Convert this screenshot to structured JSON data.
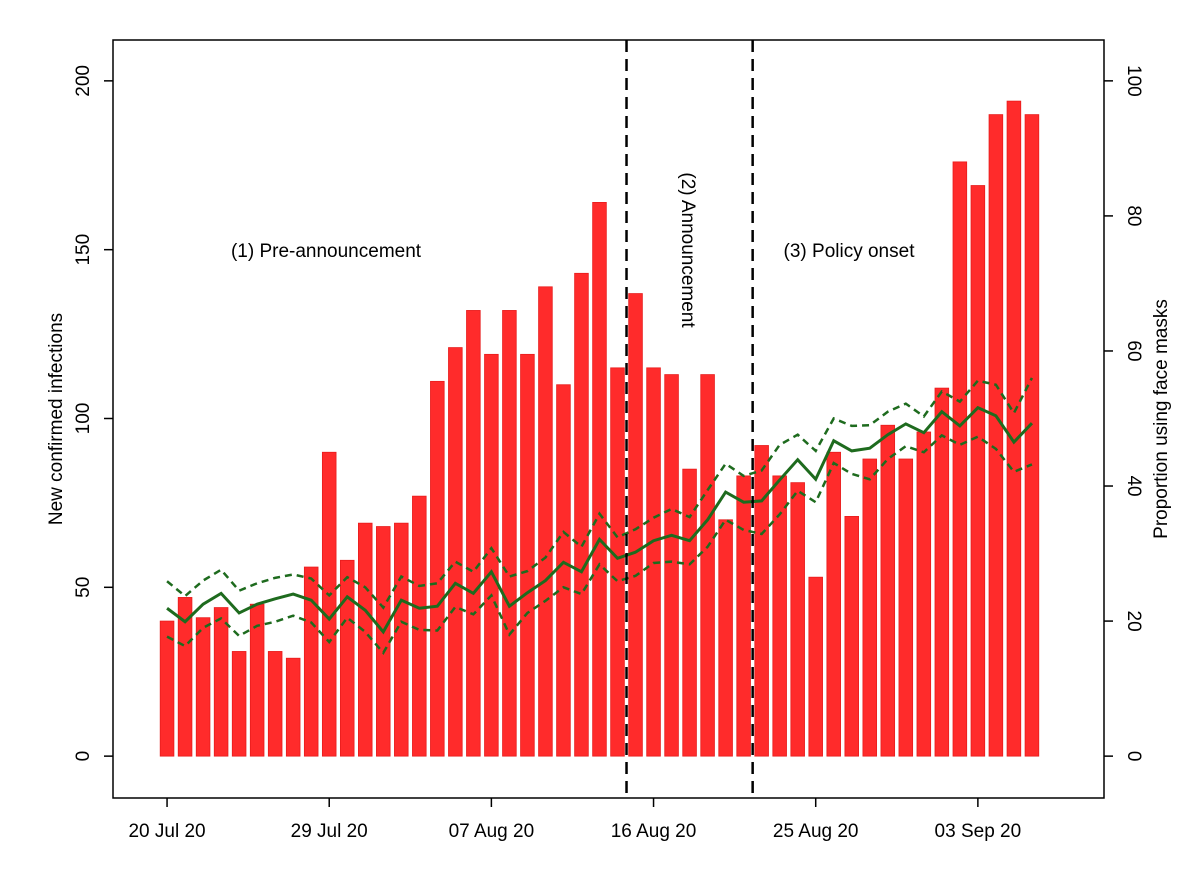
{
  "chart_data": {
    "type": "bar",
    "y_label": "New confirmed infections",
    "y2_label": "Proportion using face masks",
    "x": [
      "2020-07-20",
      "2020-07-21",
      "2020-07-22",
      "2020-07-23",
      "2020-07-24",
      "2020-07-25",
      "2020-07-26",
      "2020-07-27",
      "2020-07-28",
      "2020-07-29",
      "2020-07-30",
      "2020-07-31",
      "2020-08-01",
      "2020-08-02",
      "2020-08-03",
      "2020-08-04",
      "2020-08-05",
      "2020-08-06",
      "2020-08-07",
      "2020-08-08",
      "2020-08-09",
      "2020-08-10",
      "2020-08-11",
      "2020-08-12",
      "2020-08-13",
      "2020-08-14",
      "2020-08-15",
      "2020-08-16",
      "2020-08-17",
      "2020-08-18",
      "2020-08-19",
      "2020-08-20",
      "2020-08-21",
      "2020-08-22",
      "2020-08-23",
      "2020-08-24",
      "2020-08-25",
      "2020-08-26",
      "2020-08-27",
      "2020-08-28",
      "2020-08-29",
      "2020-08-30",
      "2020-08-31",
      "2020-09-01",
      "2020-09-02",
      "2020-09-03",
      "2020-09-04",
      "2020-09-05",
      "2020-09-06"
    ],
    "series": [
      {
        "type": "bar",
        "color": "#ff2b2b",
        "values": [
          40,
          47,
          41,
          44,
          31,
          45,
          31,
          29,
          56,
          90,
          58,
          69,
          68,
          69,
          77,
          111,
          121,
          132,
          119,
          132,
          119,
          139,
          110,
          143,
          164,
          115,
          137,
          115,
          113,
          85,
          113,
          70,
          83,
          92,
          83,
          81,
          53,
          90,
          71,
          88,
          98,
          88,
          96,
          109,
          176,
          169,
          190,
          194,
          190
        ]
      },
      {
        "type": "line",
        "axis": "y2",
        "color": "#1e6b1e",
        "dashed": false,
        "values": [
          21.9,
          19.9,
          22.5,
          24.1,
          21.2,
          22.5,
          23.3,
          24.0,
          23.1,
          20.3,
          23.6,
          21.6,
          18.4,
          23.1,
          21.9,
          22.2,
          25.6,
          24.1,
          27.3,
          22.2,
          24.2,
          26.0,
          28.7,
          27.3,
          32.1,
          29.3,
          30.2,
          31.9,
          32.7,
          31.9,
          35.0,
          39.1,
          37.6,
          37.8,
          40.9,
          43.9,
          41.0,
          46.7,
          45.2,
          45.6,
          47.6,
          49.2,
          47.9,
          51.0,
          48.9,
          51.6,
          50.4,
          46.5,
          49.3
        ]
      },
      {
        "type": "line",
        "axis": "y2",
        "color": "#1e6b1e",
        "dashed": true,
        "values": [
          25.9,
          23.7,
          26.0,
          27.6,
          24.5,
          25.6,
          26.4,
          26.9,
          26.3,
          23.8,
          26.5,
          25.0,
          22.0,
          26.6,
          25.2,
          25.6,
          28.8,
          27.3,
          30.8,
          26.6,
          27.4,
          29.4,
          33.2,
          31.0,
          35.9,
          32.4,
          33.6,
          35.3,
          36.6,
          35.4,
          39.4,
          43.3,
          41.5,
          42.3,
          46.1,
          47.6,
          45.2,
          50.0,
          48.9,
          49.0,
          51.0,
          52.2,
          50.3,
          54.0,
          52.5,
          55.6,
          55.0,
          50.8,
          56.0
        ]
      },
      {
        "type": "line",
        "axis": "y2",
        "color": "#1e6b1e",
        "dashed": true,
        "values": [
          17.7,
          16.3,
          19.0,
          20.4,
          17.8,
          19.3,
          19.9,
          20.8,
          19.8,
          16.9,
          20.5,
          18.4,
          15.3,
          19.9,
          18.7,
          18.6,
          22.1,
          21.0,
          23.8,
          18.0,
          21.2,
          23.0,
          25.0,
          24.0,
          28.4,
          25.9,
          26.7,
          28.6,
          28.8,
          28.4,
          31.0,
          35.0,
          33.5,
          32.9,
          35.8,
          39.3,
          37.6,
          43.4,
          41.8,
          41.0,
          44.0,
          45.9,
          45.0,
          47.5,
          46.1,
          47.3,
          45.5,
          42.1,
          43.2
        ]
      }
    ],
    "xlim": [
      "2020-07-17",
      "2020-09-10"
    ],
    "xticks": [
      {
        "value": "2020-07-20",
        "label": "20 Jul 20"
      },
      {
        "value": "2020-07-29",
        "label": "29 Jul 20"
      },
      {
        "value": "2020-08-07",
        "label": "07 Aug 20"
      },
      {
        "value": "2020-08-16",
        "label": "16 Aug 20"
      },
      {
        "value": "2020-08-25",
        "label": "25 Aug 20"
      },
      {
        "value": "2020-09-03",
        "label": "03 Sep 20"
      }
    ],
    "ylim": [
      -12.4,
      212.1
    ],
    "yticks": [
      0,
      50,
      100,
      150,
      200
    ],
    "y2lim": [
      -6.2,
      106.05
    ],
    "y2ticks": [
      0,
      20,
      40,
      60,
      80,
      100
    ],
    "vlines": [
      "2020-08-14T12:00",
      "2020-08-21T12:00"
    ],
    "annotations": [
      "(1) Pre-announcement",
      "(2) Announcement",
      "(3) Policy onset"
    ]
  }
}
